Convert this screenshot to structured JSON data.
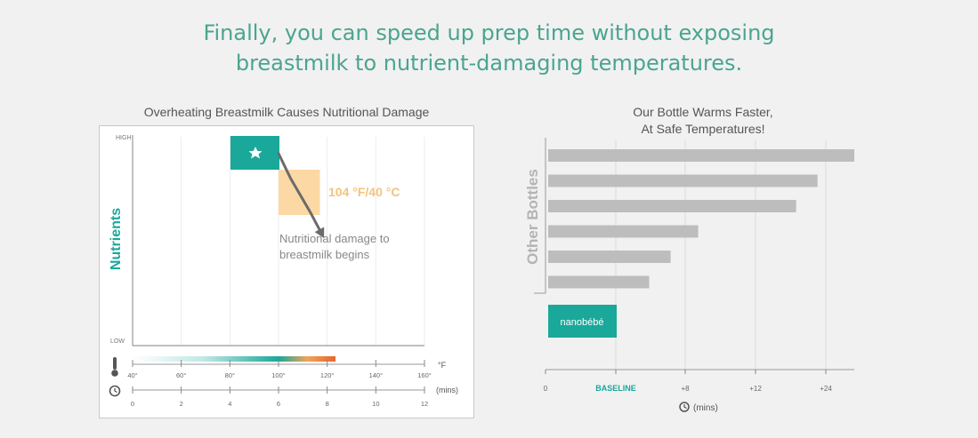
{
  "headline": {
    "line1": "Finally, you can speed up prep time without exposing",
    "line2": "breastmilk to nutrient-damaging temperatures."
  },
  "colors": {
    "teal": "#1aa89a",
    "peach": "#fbd8a4",
    "orange_text": "#f3c47f",
    "bar_gray": "#bdbdbd",
    "arrow": "#6b6b6b"
  },
  "chart_data": [
    {
      "type": "line",
      "title": "Overheating Breastmilk Causes Nutritional Damage",
      "ylabel": "Nutrients",
      "y_ticks": [
        "HIGH",
        "LOW"
      ],
      "temperature_axis": {
        "unit": "°F",
        "ticks": [
          "40°",
          "60°",
          "80°",
          "100°",
          "120°",
          "140°",
          "160°"
        ],
        "icon": "thermometer-icon"
      },
      "time_axis": {
        "unit": "(mins)",
        "ticks": [
          "0",
          "2",
          "4",
          "6",
          "8",
          "10",
          "12"
        ],
        "icon": "clock-icon"
      },
      "xlim": [
        0,
        12
      ],
      "grid": true,
      "marker": {
        "icon": "star-icon",
        "x": 4,
        "y": "HIGH"
      },
      "safe_zone": {
        "x_start": 6,
        "x_end": 7.7
      },
      "threshold_label": "104 °F/40 °C",
      "annotation": "Nutritional damage to breastmilk begins",
      "curve": [
        [
          6,
          0.92
        ],
        [
          6.5,
          0.8
        ],
        [
          7.3,
          0.64
        ],
        [
          7.8,
          0.53
        ]
      ]
    },
    {
      "type": "bar",
      "title": "Our Bottle Warms Faster,\nAt Safe Temperatures!",
      "title_line1": "Our Bottle Warms Faster,",
      "title_line2": "At Safe Temperatures!",
      "ylabel": "Other Bottles",
      "x_ticks": [
        "0",
        "BASELINE",
        "+8",
        "+12",
        "+24"
      ],
      "xlabel": "(mins)",
      "xlabel_icon": "clock-icon",
      "grid": true,
      "bars": [
        {
          "name": "other-bottle",
          "value": 1.0
        },
        {
          "name": "other-bottle",
          "value": 0.88
        },
        {
          "name": "other-bottle",
          "value": 0.81
        },
        {
          "name": "other-bottle",
          "value": 0.49
        },
        {
          "name": "other-bottle",
          "value": 0.4
        },
        {
          "name": "other-bottle",
          "value": 0.33
        }
      ],
      "highlight": {
        "label": "nanobébé",
        "value": "BASELINE"
      }
    }
  ]
}
